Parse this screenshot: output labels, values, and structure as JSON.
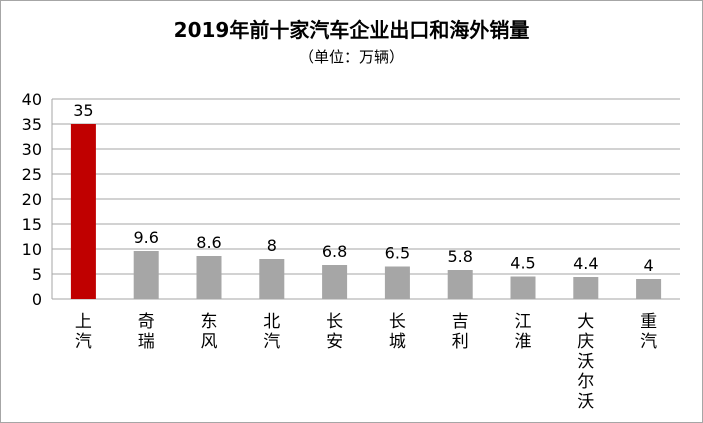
{
  "chart_data": {
    "type": "bar",
    "title": "2019年前十家汽车企业出口和海外销量",
    "subtitle": "（单位：万辆）",
    "categories": [
      "上汽",
      "奇瑞",
      "东风",
      "北汽",
      "长安",
      "长城",
      "吉利",
      "江淮",
      "大庆沃尔沃",
      "重汽"
    ],
    "values": [
      35,
      9.6,
      8.6,
      8,
      6.8,
      6.5,
      5.8,
      4.5,
      4.4,
      4
    ],
    "data_labels": [
      "35",
      "9.6",
      "8.6",
      "8",
      "6.8",
      "6.5",
      "5.8",
      "4.5",
      "4.4",
      "4"
    ],
    "ylim": [
      0,
      40
    ],
    "yticks": [
      0,
      5,
      10,
      15,
      20,
      25,
      30,
      35,
      40
    ],
    "grid": true,
    "legend": "none",
    "colors": {
      "highlight": "#c00000",
      "default": "#a6a6a6",
      "grid": "#a6a6a6"
    },
    "highlight_index": 0
  }
}
